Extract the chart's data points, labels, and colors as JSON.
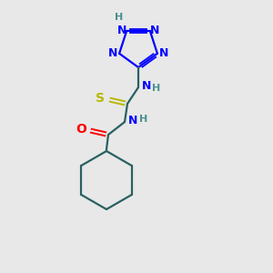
{
  "bg_color": "#e8e8e8",
  "atom_colors": {
    "N": "#0000ff",
    "H": "#4a9090",
    "S": "#b8b800",
    "O": "#ff0000",
    "C": "#2a6060",
    "bond": "#2a6060"
  },
  "figsize": [
    3.0,
    3.0
  ],
  "dpi": 100
}
